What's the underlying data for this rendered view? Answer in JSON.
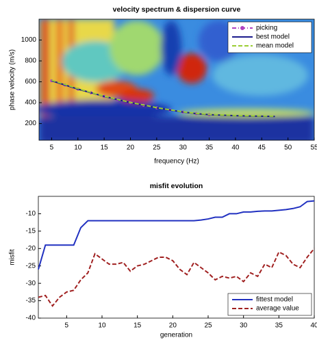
{
  "chart_data": [
    {
      "type": "line",
      "title": "velocity spectrum & dispersion curve",
      "x_label": "frequency (Hz)",
      "y_label": "phase velocity (m/s)",
      "xlim": [
        2.6,
        55
      ],
      "ylim": [
        40,
        1200
      ],
      "xticks": [
        5,
        10,
        15,
        20,
        25,
        30,
        35,
        40,
        45,
        50,
        55
      ],
      "yticks": [
        200,
        400,
        600,
        800,
        1000
      ],
      "legend": "top-right",
      "x": [
        5,
        7.5,
        10,
        12.5,
        15,
        17.5,
        20,
        22.5,
        25,
        27.5,
        30,
        32.5,
        35,
        37.5,
        40,
        42.5,
        45,
        47.5
      ],
      "series": [
        {
          "name": "picking",
          "color": "#b040c0",
          "linestyle": "dashdot",
          "marker": "circle",
          "values": [
            610,
            570,
            530,
            495,
            460,
            430,
            400,
            375,
            350,
            330,
            310,
            295,
            285,
            null,
            null,
            null,
            null,
            null
          ]
        },
        {
          "name": "best model",
          "color": "#1a1a8c",
          "linestyle": "solid",
          "values": [
            610,
            570,
            530,
            495,
            460,
            430,
            400,
            375,
            350,
            330,
            310,
            295,
            285,
            280,
            275,
            272,
            270,
            268
          ]
        },
        {
          "name": "mean model",
          "color": "#9acd32",
          "linestyle": "dashed",
          "values": [
            615,
            575,
            535,
            498,
            462,
            432,
            402,
            378,
            352,
            332,
            312,
            297,
            287,
            282,
            277,
            274,
            272,
            270
          ]
        }
      ]
    },
    {
      "type": "line",
      "title": "misfit evolution",
      "x_label": "generation",
      "y_label": "misfit",
      "xlim": [
        1,
        40
      ],
      "ylim": [
        -40,
        -5
      ],
      "xticks": [
        5,
        10,
        15,
        20,
        25,
        30,
        35,
        40
      ],
      "yticks": [
        -40,
        -35,
        -30,
        -25,
        -20,
        -15,
        -10
      ],
      "legend": "bottom-right",
      "x": [
        1,
        2,
        3,
        4,
        5,
        6,
        7,
        8,
        9,
        10,
        11,
        12,
        13,
        14,
        15,
        16,
        17,
        18,
        19,
        20,
        21,
        22,
        23,
        24,
        25,
        26,
        27,
        28,
        29,
        30,
        31,
        32,
        33,
        34,
        35,
        36,
        37,
        38,
        39,
        40
      ],
      "series": [
        {
          "name": "fittest model",
          "color": "#2030c0",
          "linestyle": "solid",
          "values": [
            -26,
            -19,
            -19,
            -19,
            -19,
            -19,
            -14,
            -12,
            -12,
            -12,
            -12,
            -12,
            -12,
            -12,
            -12,
            -12,
            -12,
            -12,
            -12,
            -12,
            -12,
            -12,
            -12,
            -11.8,
            -11.5,
            -11,
            -11,
            -10,
            -10,
            -9.5,
            -9.5,
            -9.3,
            -9.2,
            -9.2,
            -9,
            -8.8,
            -8.5,
            -8,
            -6.5,
            -6.3
          ]
        },
        {
          "name": "average value",
          "color": "#a02020",
          "linestyle": "dashed",
          "values": [
            -34,
            -33.5,
            -36.5,
            -34,
            -32.5,
            -32,
            -29,
            -27,
            -21.5,
            -23,
            -24.5,
            -24.5,
            -24,
            -26.5,
            -25,
            -24.5,
            -23.5,
            -22.5,
            -22.5,
            -23.5,
            -26,
            -27.5,
            -24,
            -25.5,
            -27,
            -29,
            -28,
            -28.5,
            -28,
            -29.5,
            -27,
            -28,
            -24.5,
            -25.5,
            -21,
            -22,
            -24.5,
            -25.5,
            -22.5,
            -20
          ]
        }
      ]
    }
  ]
}
